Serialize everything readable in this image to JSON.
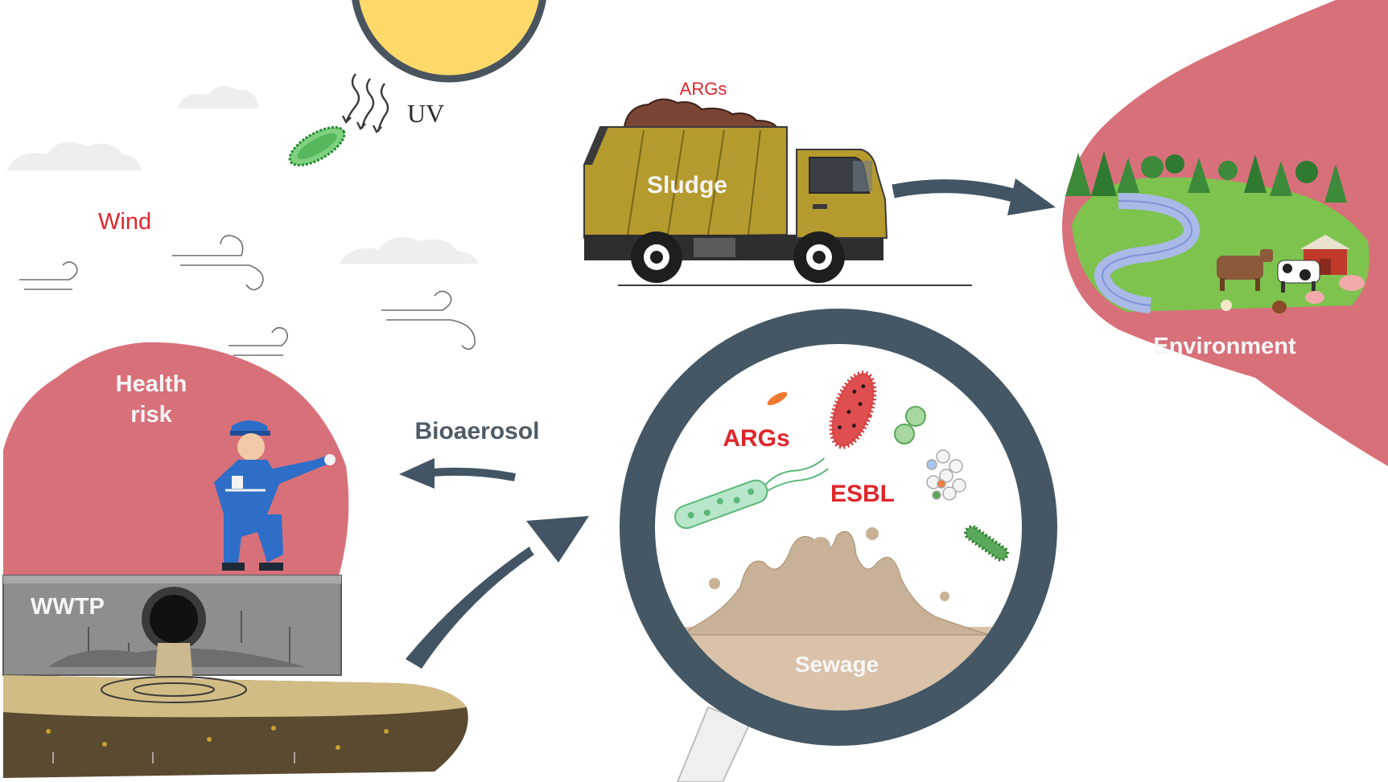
{
  "labels": {
    "uv": "UV",
    "wind": "Wind",
    "sludge_args": "ARGs",
    "sludge": "Sludge",
    "environment": "Environment",
    "health_risk_line1": "Health",
    "health_risk_line2": "risk",
    "bioaerosol": "Bioaerosol",
    "wwtp": "WWTP",
    "args": "ARGs",
    "esbl": "ESBL",
    "sewage": "Sewage"
  },
  "colors": {
    "sun": "#FDD96A",
    "sun_outline": "#4A545E",
    "blob_red": "#D8707A",
    "arrow": "#435564",
    "truck_body": "#B59A2E",
    "soil": "#5A4A30",
    "soil_top": "#D2BC85",
    "wall": "#8E8E8E",
    "lens_ring": "#455764",
    "sewage": "#D9C2A8",
    "label_red": "#E0252A",
    "label_gray": "#4E5C68",
    "grass": "#7DC34E",
    "river": "#A9B9E8",
    "tree": "#3C8A3A",
    "worker_blue": "#2E6EC8",
    "cloud": "#EEEEEE"
  }
}
